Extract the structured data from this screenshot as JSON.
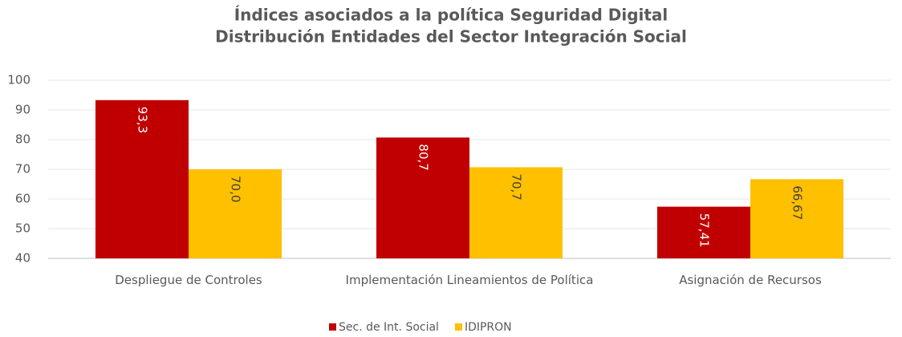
{
  "chart_data": {
    "type": "bar",
    "title": "Índices asociados a la política Seguridad Digital",
    "subtitle": "Distribución Entidades del Sector Integración Social",
    "categories": [
      "Despliegue de Controles",
      "Implementación Lineamientos de Política",
      "Asignación de Recursos"
    ],
    "series": [
      {
        "name": "Sec. de Int. Social",
        "color": "#c00000",
        "values": [
          93.3,
          80.7,
          57.41
        ],
        "value_labels": [
          "93,3",
          "80,7",
          "57,41"
        ]
      },
      {
        "name": "IDIPRON",
        "color": "#ffc000",
        "values": [
          70,
          70.7,
          66.67
        ],
        "value_labels": [
          "70,0",
          "70,7",
          "66,67"
        ]
      }
    ],
    "ylim": [
      40,
      100
    ],
    "yticks": [
      40,
      50,
      60,
      70,
      80,
      90,
      100
    ],
    "grid": true,
    "legend": "bottom"
  }
}
